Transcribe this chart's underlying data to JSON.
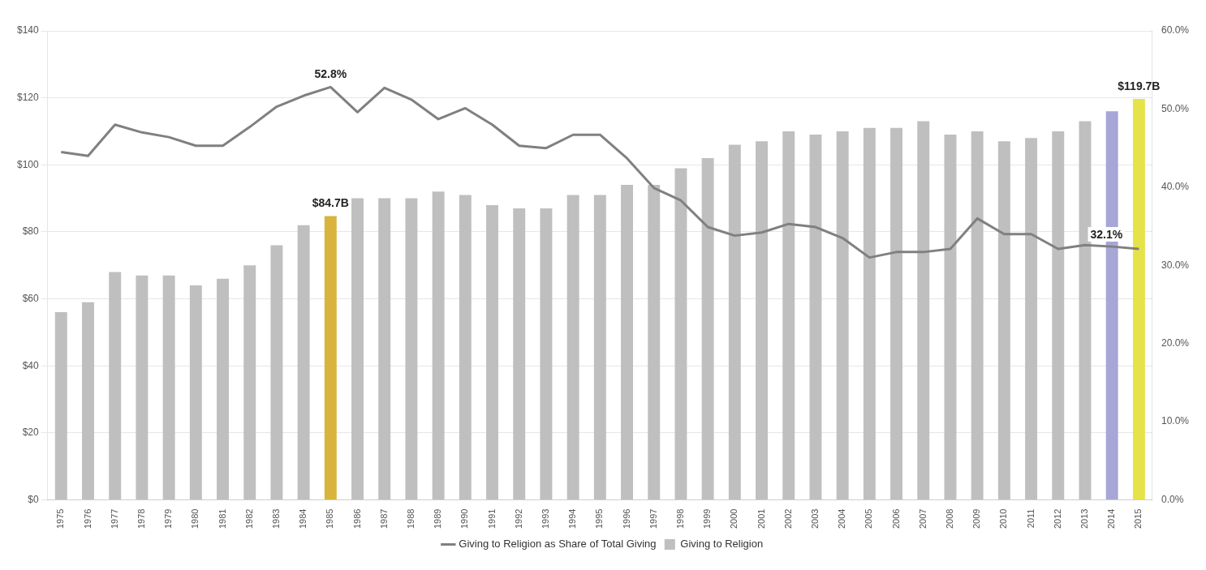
{
  "chart_data": {
    "type": "bar",
    "categories": [
      "1975",
      "1976",
      "1977",
      "1978",
      "1979",
      "1980",
      "1981",
      "1982",
      "1983",
      "1984",
      "1985",
      "1986",
      "1987",
      "1988",
      "1989",
      "1990",
      "1991",
      "1992",
      "1993",
      "1994",
      "1995",
      "1996",
      "1997",
      "1998",
      "1999",
      "2000",
      "2001",
      "2002",
      "2003",
      "2004",
      "2005",
      "2006",
      "2007",
      "2008",
      "2009",
      "2010",
      "2011",
      "2012",
      "2013",
      "2014",
      "2015"
    ],
    "series": [
      {
        "name": "Giving to Religion",
        "color": "#bfbfbf",
        "colors": [
          null,
          null,
          null,
          null,
          null,
          null,
          null,
          null,
          null,
          null,
          "#d9b43c",
          null,
          null,
          null,
          null,
          null,
          null,
          null,
          null,
          null,
          null,
          null,
          null,
          null,
          null,
          null,
          null,
          null,
          null,
          null,
          null,
          null,
          null,
          null,
          null,
          null,
          null,
          null,
          null,
          "#a8a6d6",
          "#e6e34a"
        ],
        "values": [
          56,
          59,
          68,
          67,
          67,
          64,
          66,
          70,
          76,
          82,
          84.7,
          90,
          90,
          90,
          92,
          91,
          88,
          87,
          87,
          91,
          91,
          94,
          94,
          99,
          102,
          106,
          107,
          110,
          109,
          110,
          111,
          111,
          113,
          109,
          110,
          107,
          108,
          110,
          113,
          116,
          119.7
        ],
        "value_labels": [
          null,
          null,
          null,
          null,
          null,
          null,
          null,
          null,
          null,
          null,
          "$84.7B",
          null,
          null,
          null,
          null,
          null,
          null,
          null,
          null,
          null,
          null,
          null,
          null,
          null,
          null,
          null,
          null,
          null,
          null,
          null,
          null,
          null,
          null,
          null,
          null,
          null,
          null,
          null,
          null,
          null,
          "$119.7B"
        ]
      },
      {
        "name": "Giving to Religion as Share of Total Giving",
        "type": "line",
        "axis": "y2",
        "color": "#808080",
        "values": [
          44.5,
          44,
          48,
          47,
          46.4,
          45.3,
          45.3,
          47.7,
          50.3,
          51.7,
          52.8,
          49.6,
          52.7,
          51.2,
          48.7,
          50.1,
          48,
          45.3,
          45,
          46.7,
          46.7,
          43.7,
          39.9,
          38.3,
          34.9,
          33.8,
          34.2,
          35.3,
          34.9,
          33.5,
          31,
          31.7,
          31.7,
          32.1,
          36,
          34,
          34,
          32.1,
          32.6,
          32.4,
          32.1
        ],
        "value_labels": [
          null,
          null,
          null,
          null,
          null,
          null,
          null,
          null,
          null,
          null,
          "52.8%",
          null,
          null,
          null,
          null,
          null,
          null,
          null,
          null,
          null,
          null,
          null,
          null,
          null,
          null,
          null,
          null,
          null,
          null,
          null,
          null,
          null,
          null,
          null,
          null,
          null,
          null,
          null,
          null,
          null,
          "32.1%"
        ]
      }
    ],
    "ylim": [
      0,
      140
    ],
    "yticks": [
      {
        "value": 0,
        "label": "$0"
      },
      {
        "value": 20,
        "label": "$20"
      },
      {
        "value": 40,
        "label": "$40"
      },
      {
        "value": 60,
        "label": "$60"
      },
      {
        "value": 80,
        "label": "$80"
      },
      {
        "value": 100,
        "label": "$100"
      },
      {
        "value": 120,
        "label": "$120"
      },
      {
        "value": 140,
        "label": "$140"
      }
    ],
    "y2lim": [
      0,
      60
    ],
    "y2ticks": [
      {
        "value": 0,
        "label": "0.0%"
      },
      {
        "value": 10,
        "label": "10.0%"
      },
      {
        "value": 20,
        "label": "20.0%"
      },
      {
        "value": 30,
        "label": "30.0%"
      },
      {
        "value": 40,
        "label": "40.0%"
      },
      {
        "value": 50,
        "label": "50.0%"
      },
      {
        "value": 60,
        "label": "60.0%"
      }
    ],
    "grid": "y",
    "legend": "bottom",
    "marker": "none",
    "line_style": "solid"
  }
}
